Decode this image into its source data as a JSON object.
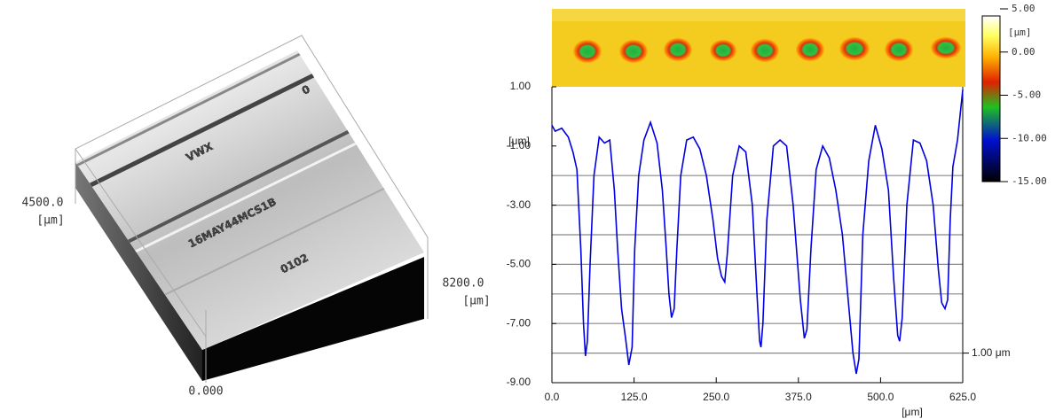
{
  "surface_view": {
    "y_extent": "4500.0",
    "y_unit": "[μm]",
    "x_extent": "8200.0",
    "x_unit": "[μm]",
    "origin": "0.000",
    "engraving": [
      "VWX",
      "16MAY44MCS1B",
      "0102",
      "0"
    ]
  },
  "chart_data": {
    "type": "line",
    "color": "#0000e0",
    "x": [
      0,
      5,
      15,
      25,
      32,
      38,
      44,
      48,
      51,
      54,
      58,
      64,
      72,
      80,
      88,
      95,
      100,
      106,
      112,
      117,
      122,
      126,
      132,
      140,
      150,
      160,
      168,
      174,
      178,
      182,
      186,
      190,
      196,
      205,
      215,
      225,
      235,
      245,
      252,
      258,
      263,
      267,
      275,
      285,
      295,
      305,
      312,
      316,
      318,
      321,
      327,
      337,
      347,
      357,
      367,
      378,
      384,
      388,
      394,
      402,
      412,
      422,
      432,
      442,
      452,
      458,
      463,
      467,
      473,
      482,
      492,
      502,
      512,
      520,
      526,
      529,
      533,
      540,
      550,
      560,
      570,
      580,
      588,
      593,
      598,
      602,
      606,
      610,
      617,
      625
    ],
    "values": [
      -0.3,
      -0.5,
      -0.4,
      -0.7,
      -1.2,
      -1.8,
      -4.5,
      -7,
      -8.1,
      -7.6,
      -5,
      -2,
      -0.7,
      -0.9,
      -0.8,
      -2.5,
      -4.5,
      -6.5,
      -7.5,
      -8.4,
      -7.8,
      -4.5,
      -2,
      -0.8,
      -0.2,
      -0.9,
      -2.5,
      -4.5,
      -6,
      -6.8,
      -6.5,
      -4.5,
      -2,
      -0.8,
      -0.7,
      -1.1,
      -2,
      -3.5,
      -4.8,
      -5.4,
      -5.6,
      -4.6,
      -2,
      -1,
      -1.2,
      -3,
      -6,
      -7.6,
      -7.8,
      -7,
      -3.5,
      -1,
      -0.8,
      -1,
      -3,
      -6.2,
      -7.5,
      -7.2,
      -4.5,
      -1.8,
      -1,
      -1.4,
      -2.5,
      -4,
      -6.5,
      -8,
      -8.7,
      -8.2,
      -4,
      -1.5,
      -0.3,
      -1.1,
      -2.5,
      -5.5,
      -7.4,
      -7.6,
      -6.8,
      -3,
      -0.8,
      -0.9,
      -1.5,
      -3,
      -5.2,
      -6.3,
      -6.5,
      -6.2,
      -3.5,
      -1.7,
      -0.8,
      0.9
    ],
    "xlim": [
      0,
      625
    ],
    "xticks": [
      {
        "value": 0,
        "label": "0.0"
      },
      {
        "value": 125,
        "label": "125.0"
      },
      {
        "value": 250,
        "label": "250.0"
      },
      {
        "value": 375,
        "label": "375.0"
      },
      {
        "value": 500,
        "label": "500.0"
      },
      {
        "value": 625,
        "label": "625.0"
      }
    ],
    "ylim": [
      -9,
      1
    ],
    "yticks": [
      {
        "value": 1,
        "label": "1.00"
      },
      {
        "value": -1,
        "label": "-1.00"
      },
      {
        "value": -3,
        "label": "-3.00"
      },
      {
        "value": -5,
        "label": "-5.00"
      },
      {
        "value": -7,
        "label": "-7.00"
      },
      {
        "value": -9,
        "label": "-9.00"
      }
    ],
    "ygrid": [
      -2,
      -3,
      -4,
      -5,
      -6,
      -7,
      -8
    ],
    "x_label": "[μm]",
    "y_label": "[μm]",
    "scale_bar": {
      "value": -8,
      "label": "1.00 μm"
    },
    "colorbar": {
      "lim": [
        -15,
        5
      ],
      "label": "[μm]",
      "ticks": [
        {
          "value": 5,
          "label": "5.00"
        },
        {
          "value": 0,
          "label": "0.00"
        },
        {
          "value": -5,
          "label": "-5.00"
        },
        {
          "value": -10,
          "label": "-10.00"
        },
        {
          "value": -15,
          "label": "-15.00"
        }
      ]
    }
  }
}
